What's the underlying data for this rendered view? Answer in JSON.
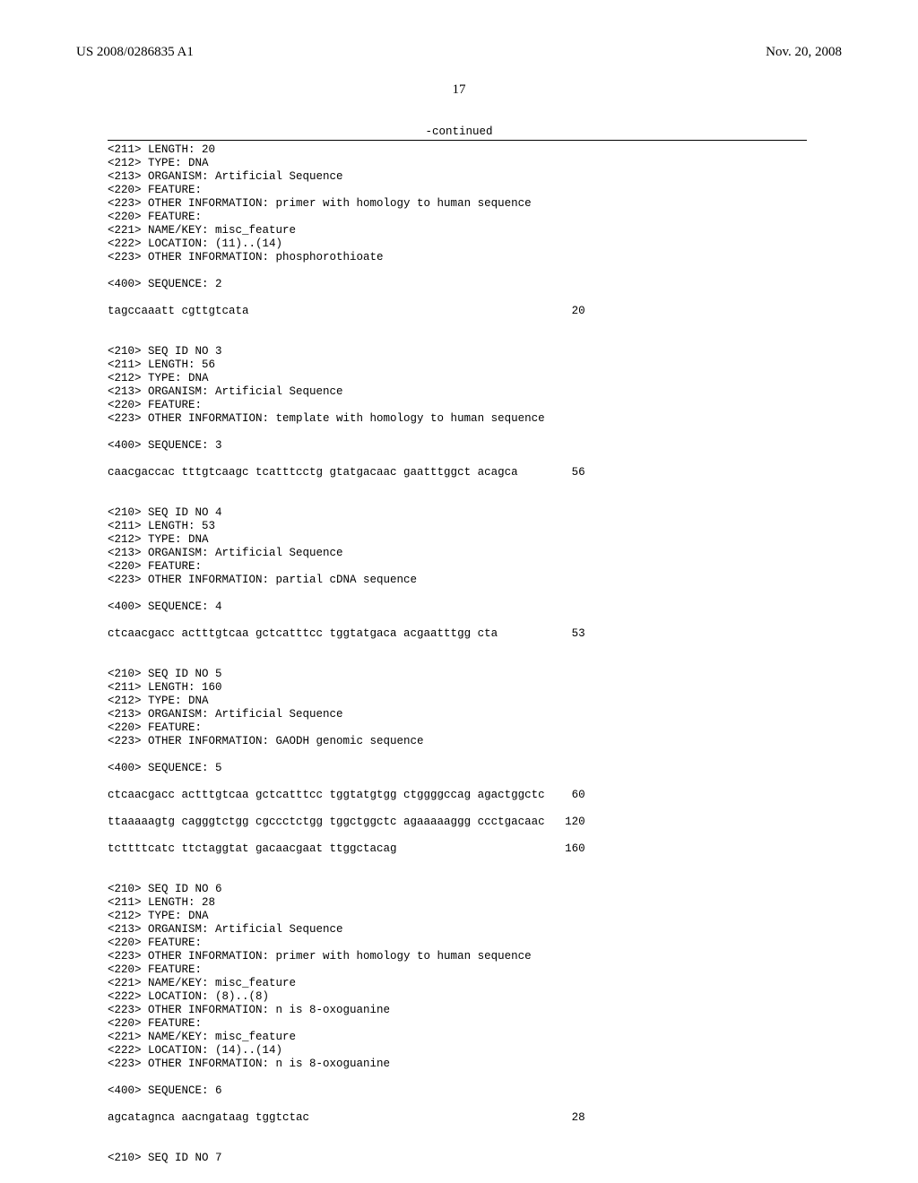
{
  "header": {
    "left": "US 2008/0286835 A1",
    "right": "Nov. 20, 2008"
  },
  "page_number": "17",
  "continued": "-continued",
  "entries": [
    {
      "meta": [
        "<211> LENGTH: 20",
        "<212> TYPE: DNA",
        "<213> ORGANISM: Artificial Sequence",
        "<220> FEATURE:",
        "<223> OTHER INFORMATION: primer with homology to human sequence",
        "<220> FEATURE:",
        "<221> NAME/KEY: misc_feature",
        "<222> LOCATION: (11)..(14)",
        "<223> OTHER INFORMATION: phosphorothioate"
      ],
      "seq_label": "<400> SEQUENCE: 2",
      "seq_lines": [
        {
          "text": "tagccaaatt cgttgtcata",
          "pos": "20"
        }
      ]
    },
    {
      "meta": [
        "<210> SEQ ID NO 3",
        "<211> LENGTH: 56",
        "<212> TYPE: DNA",
        "<213> ORGANISM: Artificial Sequence",
        "<220> FEATURE:",
        "<223> OTHER INFORMATION: template with homology to human sequence"
      ],
      "seq_label": "<400> SEQUENCE: 3",
      "seq_lines": [
        {
          "text": "caacgaccac tttgtcaagc tcatttcctg gtatgacaac gaatttggct acagca",
          "pos": "56"
        }
      ]
    },
    {
      "meta": [
        "<210> SEQ ID NO 4",
        "<211> LENGTH: 53",
        "<212> TYPE: DNA",
        "<213> ORGANISM: Artificial Sequence",
        "<220> FEATURE:",
        "<223> OTHER INFORMATION: partial cDNA sequence"
      ],
      "seq_label": "<400> SEQUENCE: 4",
      "seq_lines": [
        {
          "text": "ctcaacgacc actttgtcaa gctcatttcc tggtatgaca acgaatttgg cta",
          "pos": "53"
        }
      ]
    },
    {
      "meta": [
        "<210> SEQ ID NO 5",
        "<211> LENGTH: 160",
        "<212> TYPE: DNA",
        "<213> ORGANISM: Artificial Sequence",
        "<220> FEATURE:",
        "<223> OTHER INFORMATION: GAODH genomic sequence"
      ],
      "seq_label": "<400> SEQUENCE: 5",
      "seq_lines": [
        {
          "text": "ctcaacgacc actttgtcaa gctcatttcc tggtatgtgg ctggggccag agactggctc",
          "pos": "60"
        },
        {
          "text": "ttaaaaagtg cagggtctgg cgccctctgg tggctggctc agaaaaaggg ccctgacaac",
          "pos": "120"
        },
        {
          "text": "tcttttcatc ttctaggtat gacaacgaat ttggctacag",
          "pos": "160"
        }
      ]
    },
    {
      "meta": [
        "<210> SEQ ID NO 6",
        "<211> LENGTH: 28",
        "<212> TYPE: DNA",
        "<213> ORGANISM: Artificial Sequence",
        "<220> FEATURE:",
        "<223> OTHER INFORMATION: primer with homology to human sequence",
        "<220> FEATURE:",
        "<221> NAME/KEY: misc_feature",
        "<222> LOCATION: (8)..(8)",
        "<223> OTHER INFORMATION: n is 8-oxoguanine",
        "<220> FEATURE:",
        "<221> NAME/KEY: misc_feature",
        "<222> LOCATION: (14)..(14)",
        "<223> OTHER INFORMATION: n is 8-oxoguanine"
      ],
      "seq_label": "<400> SEQUENCE: 6",
      "seq_lines": [
        {
          "text": "agcatagnca aacngataag tggtctac",
          "pos": "28"
        }
      ]
    },
    {
      "meta": [
        "<210> SEQ ID NO 7"
      ],
      "seq_label": "",
      "seq_lines": []
    }
  ]
}
